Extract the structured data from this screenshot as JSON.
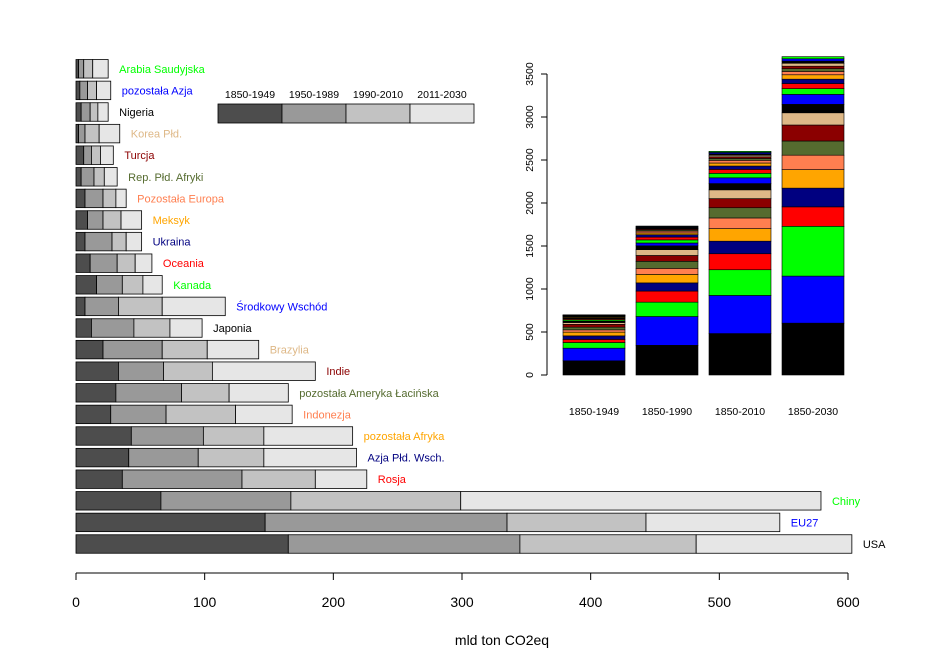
{
  "chart_data": [
    {
      "type": "bar",
      "orientation": "horizontal",
      "stacked": true,
      "xlabel": "mld ton CO2eq",
      "xlim": [
        0,
        600
      ],
      "xticks": [
        "0",
        "100",
        "200",
        "300",
        "400",
        "500",
        "600"
      ],
      "legend": {
        "placement": "top-center",
        "entries": [
          "1850-1949",
          "1950-1989",
          "1990-2010",
          "2011-2030"
        ],
        "colors": [
          "#4d4d4d",
          "#999999",
          "#c2c2c2",
          "#e6e6e6"
        ]
      },
      "categories": [
        {
          "name": "USA",
          "color": "#000000",
          "values": [
            165,
            180,
            137,
            121
          ]
        },
        {
          "name": "EU27",
          "color": "#0000ff",
          "values": [
            147,
            188,
            108,
            104
          ]
        },
        {
          "name": "Chiny",
          "color": "#00ff00",
          "values": [
            66,
            101,
            132,
            280
          ]
        },
        {
          "name": "Rosja",
          "color": "#ff0000",
          "values": [
            36,
            93,
            57,
            40
          ]
        },
        {
          "name": "Azja Płd. Wsch.",
          "color": "#000080",
          "values": [
            41,
            54,
            51,
            72
          ]
        },
        {
          "name": "pozostała Afryka",
          "color": "#ffa500",
          "values": [
            43,
            56,
            47,
            69
          ]
        },
        {
          "name": "Indonezja",
          "color": "#ff7f50",
          "values": [
            27,
            43,
            54,
            44
          ]
        },
        {
          "name": "pozostała Ameryka Łacińska",
          "color": "#556b2f",
          "values": [
            31,
            51,
            37,
            46
          ]
        },
        {
          "name": "Indie",
          "color": "#8b0000",
          "values": [
            33,
            35,
            38,
            80
          ]
        },
        {
          "name": "Brazylia",
          "color": "#deb887",
          "values": [
            21,
            46,
            35,
            40
          ]
        },
        {
          "name": "Japonia",
          "color": "#000000",
          "values": [
            12,
            33,
            28,
            25
          ]
        },
        {
          "name": "Środkowy Wschód",
          "color": "#0000ff",
          "values": [
            7,
            26,
            34,
            49
          ]
        },
        {
          "name": "Kanada",
          "color": "#00ff00",
          "values": [
            16,
            20,
            16,
            15
          ]
        },
        {
          "name": "Oceania",
          "color": "#ff0000",
          "values": [
            11,
            21,
            14,
            13
          ]
        },
        {
          "name": "Ukraina",
          "color": "#000080",
          "values": [
            7,
            21,
            11,
            12
          ]
        },
        {
          "name": "Meksyk",
          "color": "#ffa500",
          "values": [
            9,
            12,
            14,
            16
          ]
        },
        {
          "name": "Pozostała Europa",
          "color": "#ff7f50",
          "values": [
            7,
            14,
            10,
            8
          ]
        },
        {
          "name": "Rep. Płd. Afryki",
          "color": "#556b2f",
          "values": [
            4,
            10,
            8,
            10
          ]
        },
        {
          "name": "Turcja",
          "color": "#8b0000",
          "values": [
            6,
            6,
            7,
            10
          ]
        },
        {
          "name": "Korea Płd.",
          "color": "#deb887",
          "values": [
            2,
            5,
            11,
            16
          ]
        },
        {
          "name": "Nigeria",
          "color": "#000000",
          "values": [
            4,
            7,
            6,
            8
          ]
        },
        {
          "name": "pozostała Azja",
          "color": "#0000ff",
          "values": [
            3,
            6,
            7,
            11
          ]
        },
        {
          "name": "Arabia Saudyjska",
          "color": "#00ff00",
          "values": [
            2,
            4,
            7,
            12
          ]
        }
      ]
    },
    {
      "type": "bar",
      "stacked": true,
      "placement": "inset-top-right",
      "categories": [
        "1850-1949",
        "1850-1990",
        "1850-2010",
        "1850-2030"
      ],
      "ylim": [
        0,
        3700
      ],
      "yticks": [
        "0",
        "500",
        "1000",
        "1500",
        "2000",
        "2500",
        "3000",
        "3500"
      ],
      "totals": [
        683,
        1720,
        2590,
        3695
      ]
    }
  ]
}
